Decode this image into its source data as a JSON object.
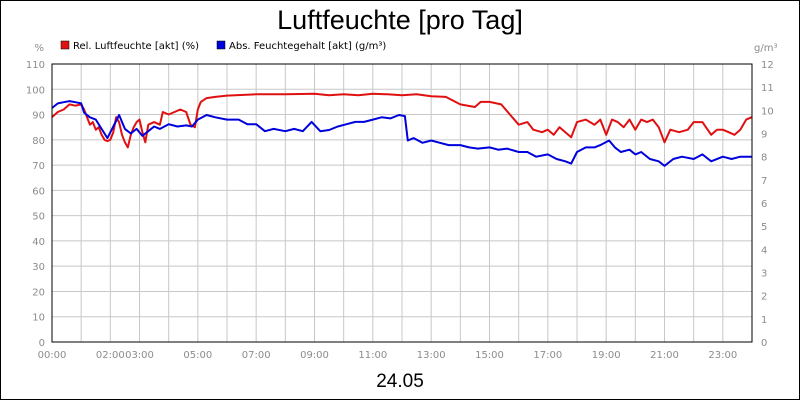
{
  "chart_data": {
    "type": "line",
    "title": "Luftfeuchte [pro Tag]",
    "date_label": "24.05",
    "y_left": {
      "unit": "%",
      "min": 0,
      "max": 110,
      "ticks": [
        0,
        10,
        20,
        30,
        40,
        50,
        60,
        70,
        80,
        90,
        100,
        110
      ]
    },
    "y_right": {
      "unit": "g/m³",
      "min": 0,
      "max": 12,
      "ticks": [
        0,
        1,
        2,
        3,
        4,
        5,
        6,
        7,
        8,
        9,
        10,
        11,
        12
      ]
    },
    "x_range": [
      0,
      24
    ],
    "x_ticks": [
      {
        "x": 0,
        "label": "00:00"
      },
      {
        "x": 2,
        "label": "02:00"
      },
      {
        "x": 3,
        "label": "03:00"
      },
      {
        "x": 5,
        "label": "05:00"
      },
      {
        "x": 7,
        "label": "07:00"
      },
      {
        "x": 9,
        "label": "09:00"
      },
      {
        "x": 11,
        "label": "11:00"
      },
      {
        "x": 13,
        "label": "13:00"
      },
      {
        "x": 15,
        "label": "15:00"
      },
      {
        "x": 17,
        "label": "17:00"
      },
      {
        "x": 19,
        "label": "19:00"
      },
      {
        "x": 21,
        "label": "21:00"
      },
      {
        "x": 23,
        "label": "23:00"
      }
    ],
    "grid": true,
    "legend_position": "top-left",
    "series": [
      {
        "name": "Rel. Luftfeuchte [akt] (%)",
        "color": "#e01010",
        "axis": "left",
        "points": [
          [
            0,
            89
          ],
          [
            0.2,
            91
          ],
          [
            0.4,
            92
          ],
          [
            0.6,
            94
          ],
          [
            0.8,
            93.5
          ],
          [
            1.0,
            94
          ],
          [
            1.1,
            92
          ],
          [
            1.2,
            89
          ],
          [
            1.3,
            86
          ],
          [
            1.4,
            87
          ],
          [
            1.5,
            84
          ],
          [
            1.6,
            85
          ],
          [
            1.7,
            82
          ],
          [
            1.8,
            80
          ],
          [
            1.9,
            79.5
          ],
          [
            2.0,
            80
          ],
          [
            2.1,
            83
          ],
          [
            2.2,
            89
          ],
          [
            2.3,
            87
          ],
          [
            2.4,
            82
          ],
          [
            2.5,
            79
          ],
          [
            2.6,
            77
          ],
          [
            2.7,
            82
          ],
          [
            2.8,
            85
          ],
          [
            2.9,
            87
          ],
          [
            3.0,
            88
          ],
          [
            3.1,
            83
          ],
          [
            3.2,
            79
          ],
          [
            3.3,
            86
          ],
          [
            3.5,
            87
          ],
          [
            3.7,
            86
          ],
          [
            3.8,
            91
          ],
          [
            4.0,
            90
          ],
          [
            4.2,
            91
          ],
          [
            4.4,
            92
          ],
          [
            4.6,
            91
          ],
          [
            4.75,
            86
          ],
          [
            4.9,
            85
          ],
          [
            5.0,
            92
          ],
          [
            5.1,
            95
          ],
          [
            5.3,
            96.5
          ],
          [
            5.6,
            97
          ],
          [
            6.0,
            97.5
          ],
          [
            7.0,
            98
          ],
          [
            8.0,
            98
          ],
          [
            9.0,
            98.2
          ],
          [
            9.5,
            97.6
          ],
          [
            10.0,
            98
          ],
          [
            10.5,
            97.6
          ],
          [
            11.0,
            98.2
          ],
          [
            11.5,
            98
          ],
          [
            12.0,
            97.6
          ],
          [
            12.5,
            98
          ],
          [
            13.0,
            97.2
          ],
          [
            13.5,
            97
          ],
          [
            14.0,
            94
          ],
          [
            14.5,
            93
          ],
          [
            14.7,
            95
          ],
          [
            15.0,
            95
          ],
          [
            15.4,
            94
          ],
          [
            15.7,
            90
          ],
          [
            16.0,
            86
          ],
          [
            16.3,
            87
          ],
          [
            16.5,
            84
          ],
          [
            16.8,
            83
          ],
          [
            17.0,
            84
          ],
          [
            17.2,
            82
          ],
          [
            17.4,
            85
          ],
          [
            17.6,
            83
          ],
          [
            17.8,
            81
          ],
          [
            18.0,
            87
          ],
          [
            18.3,
            88
          ],
          [
            18.6,
            86
          ],
          [
            18.8,
            88
          ],
          [
            19.0,
            82
          ],
          [
            19.2,
            88
          ],
          [
            19.4,
            87
          ],
          [
            19.6,
            85
          ],
          [
            19.8,
            88
          ],
          [
            20.0,
            84
          ],
          [
            20.2,
            88
          ],
          [
            20.4,
            87
          ],
          [
            20.6,
            88
          ],
          [
            20.8,
            85
          ],
          [
            21.0,
            79
          ],
          [
            21.2,
            84
          ],
          [
            21.5,
            83
          ],
          [
            21.8,
            84
          ],
          [
            22.0,
            87
          ],
          [
            22.3,
            87
          ],
          [
            22.6,
            82
          ],
          [
            22.8,
            84
          ],
          [
            23.0,
            84
          ],
          [
            23.2,
            83
          ],
          [
            23.4,
            82
          ],
          [
            23.6,
            84
          ],
          [
            23.8,
            88
          ],
          [
            24.0,
            89
          ]
        ]
      },
      {
        "name": "Abs. Feuchtegehalt [akt] (g/m³)",
        "color": "#0000dd",
        "axis": "right",
        "points": [
          [
            0,
            10.1
          ],
          [
            0.2,
            10.3
          ],
          [
            0.4,
            10.35
          ],
          [
            0.6,
            10.4
          ],
          [
            0.8,
            10.35
          ],
          [
            1.0,
            10.3
          ],
          [
            1.1,
            9.9
          ],
          [
            1.3,
            9.7
          ],
          [
            1.5,
            9.6
          ],
          [
            1.7,
            9.2
          ],
          [
            1.9,
            8.8
          ],
          [
            2.1,
            9.3
          ],
          [
            2.3,
            9.8
          ],
          [
            2.5,
            9.2
          ],
          [
            2.7,
            9.0
          ],
          [
            2.9,
            9.2
          ],
          [
            3.1,
            8.9
          ],
          [
            3.3,
            9.1
          ],
          [
            3.5,
            9.3
          ],
          [
            3.7,
            9.2
          ],
          [
            4.0,
            9.4
          ],
          [
            4.3,
            9.3
          ],
          [
            4.6,
            9.35
          ],
          [
            4.8,
            9.3
          ],
          [
            5.0,
            9.6
          ],
          [
            5.3,
            9.8
          ],
          [
            5.6,
            9.7
          ],
          [
            6.0,
            9.6
          ],
          [
            6.4,
            9.6
          ],
          [
            6.7,
            9.4
          ],
          [
            7.0,
            9.4
          ],
          [
            7.3,
            9.1
          ],
          [
            7.6,
            9.2
          ],
          [
            8.0,
            9.1
          ],
          [
            8.3,
            9.2
          ],
          [
            8.6,
            9.1
          ],
          [
            8.9,
            9.5
          ],
          [
            9.2,
            9.1
          ],
          [
            9.5,
            9.15
          ],
          [
            9.8,
            9.3
          ],
          [
            10.1,
            9.4
          ],
          [
            10.4,
            9.5
          ],
          [
            10.7,
            9.5
          ],
          [
            11.0,
            9.6
          ],
          [
            11.3,
            9.7
          ],
          [
            11.6,
            9.65
          ],
          [
            11.9,
            9.8
          ],
          [
            12.1,
            9.75
          ],
          [
            12.2,
            8.7
          ],
          [
            12.4,
            8.8
          ],
          [
            12.7,
            8.6
          ],
          [
            13.0,
            8.7
          ],
          [
            13.3,
            8.6
          ],
          [
            13.6,
            8.5
          ],
          [
            14.0,
            8.5
          ],
          [
            14.3,
            8.4
          ],
          [
            14.6,
            8.35
          ],
          [
            15.0,
            8.4
          ],
          [
            15.3,
            8.3
          ],
          [
            15.6,
            8.35
          ],
          [
            16.0,
            8.2
          ],
          [
            16.3,
            8.2
          ],
          [
            16.6,
            8.0
          ],
          [
            17.0,
            8.1
          ],
          [
            17.3,
            7.9
          ],
          [
            17.6,
            7.8
          ],
          [
            17.8,
            7.7
          ],
          [
            18.0,
            8.2
          ],
          [
            18.3,
            8.4
          ],
          [
            18.6,
            8.4
          ],
          [
            18.8,
            8.5
          ],
          [
            19.1,
            8.7
          ],
          [
            19.3,
            8.4
          ],
          [
            19.5,
            8.2
          ],
          [
            19.8,
            8.3
          ],
          [
            20.0,
            8.1
          ],
          [
            20.2,
            8.2
          ],
          [
            20.5,
            7.9
          ],
          [
            20.8,
            7.8
          ],
          [
            21.0,
            7.6
          ],
          [
            21.3,
            7.9
          ],
          [
            21.6,
            8.0
          ],
          [
            22.0,
            7.9
          ],
          [
            22.3,
            8.1
          ],
          [
            22.6,
            7.8
          ],
          [
            23.0,
            8.0
          ],
          [
            23.3,
            7.9
          ],
          [
            23.6,
            8.0
          ],
          [
            24.0,
            8.0
          ]
        ]
      }
    ]
  }
}
